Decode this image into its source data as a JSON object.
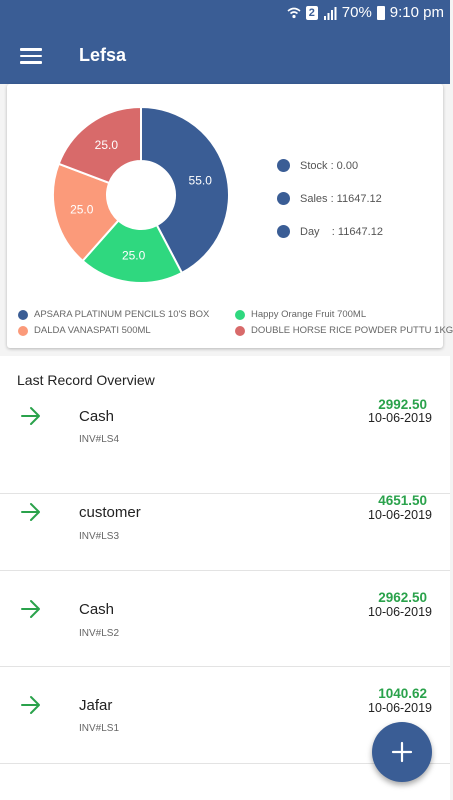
{
  "status_bar": {
    "wifi_icon": "wifi-icon",
    "sim_badge": "2",
    "signal_icon": "signal-icon",
    "battery_percent": "70%",
    "battery_icon": "battery-icon",
    "time": "9:10 pm"
  },
  "app_bar": {
    "menu_icon": "hamburger-menu-icon",
    "title": "Lefsa"
  },
  "chart_data": {
    "type": "pie",
    "style": "donut",
    "categories": [
      "APSARA PLATINUM PENCILS 10'S BOX",
      "Happy Orange Fruit 700ML",
      "DALDA VANASPATI 500ML",
      "DOUBLE HORSE RICE POWDER PUTTU 1KG"
    ],
    "values": [
      55.0,
      25.0,
      25.0,
      25.0
    ],
    "value_labels": [
      "55.0",
      "25.0",
      "25.0",
      "25.0"
    ],
    "colors": [
      "#3a5d95",
      "#2fd87f",
      "#fb9a7a",
      "#d86a6a"
    ],
    "legend_position": "bottom"
  },
  "summary": {
    "dot_color": "#3a5d95",
    "stock": "Stock : 0.00",
    "sales": "Sales : 11647.12",
    "day": "Day    : 11647.12"
  },
  "section_title": "Last Record Overview",
  "records": [
    {
      "icon": "arrow-right-icon",
      "name": "Cash",
      "invoice": "INV#LS4",
      "amount": "2992.50",
      "date": "10-06-2019"
    },
    {
      "icon": "arrow-right-icon",
      "name": "customer",
      "invoice": "INV#LS3",
      "amount": "4651.50",
      "date": "10-06-2019"
    },
    {
      "icon": "arrow-right-icon",
      "name": "Cash",
      "invoice": "INV#LS2",
      "amount": "2962.50",
      "date": "10-06-2019"
    },
    {
      "icon": "arrow-right-icon",
      "name": "Jafar",
      "invoice": "INV#LS1",
      "amount": "1040.62",
      "date": "10-06-2019"
    }
  ],
  "colors": {
    "primary": "#3a5d95",
    "amount_green": "#2aa24b",
    "arrow_green": "#2aa24b"
  },
  "fab": {
    "icon": "plus-icon"
  }
}
